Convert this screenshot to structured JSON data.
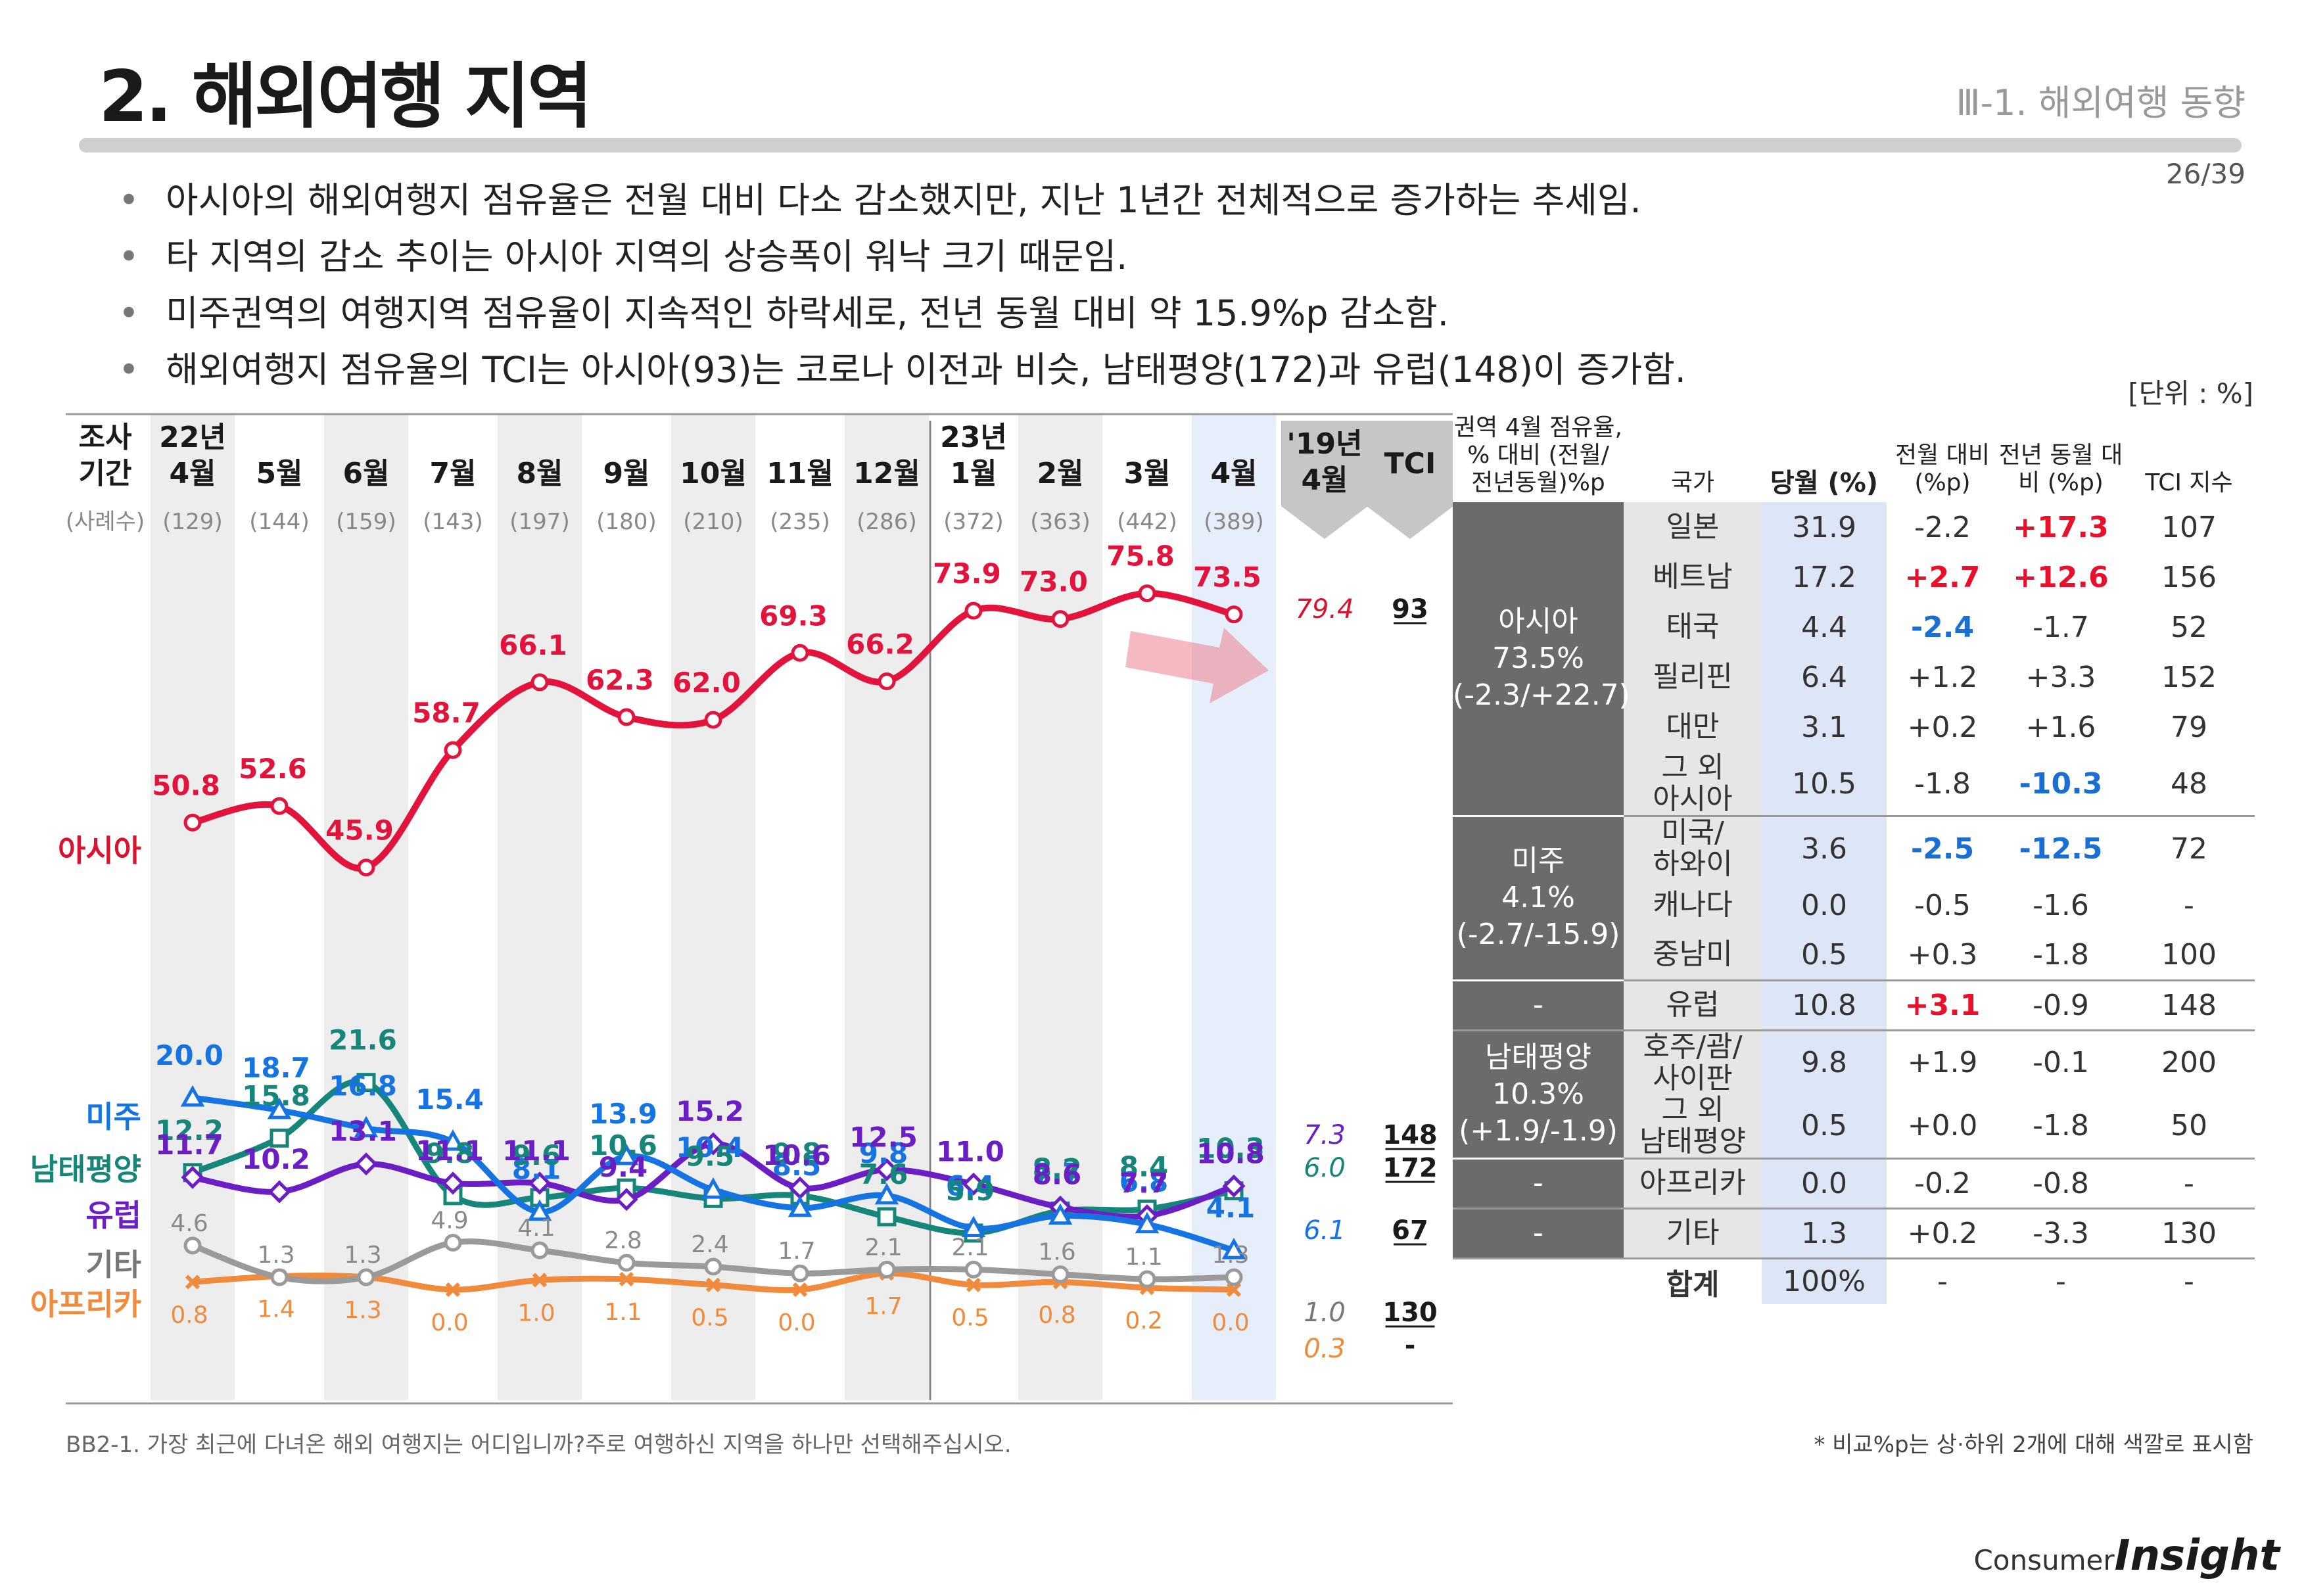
{
  "header": {
    "title": "2. 해외여행 지역",
    "section": "Ⅲ-1. 해외여행 동향",
    "page": "26/39"
  },
  "bullets": [
    "아시아의 해외여행지 점유율은 전월 대비 다소 감소했지만, 지난 1년간 전체적으로 증가하는 추세임.",
    "타 지역의 감소 추이는 아시아 지역의 상승폭이 워낙 크기 때문임.",
    "미주권역의 여행지역 점유율이 지속적인 하락세로, 전년 동월 대비 약 15.9%p 감소함.",
    "해외여행지 점유율의 TCI는 아시아(93)는 코로나 이전과 비슷, 남태평양(172)과 유럽(148)이 증가함."
  ],
  "unit_label": "[단위 : %]",
  "chart_data": {
    "type": "line",
    "period_label": [
      "조사",
      "기간"
    ],
    "sample_label": "(사례수)",
    "x": [
      {
        "year": "22년",
        "month": "4월",
        "n": "(129)"
      },
      {
        "year": "",
        "month": "5월",
        "n": "(144)"
      },
      {
        "year": "",
        "month": "6월",
        "n": "(159)"
      },
      {
        "year": "",
        "month": "7월",
        "n": "(143)"
      },
      {
        "year": "",
        "month": "8월",
        "n": "(197)"
      },
      {
        "year": "",
        "month": "9월",
        "n": "(180)"
      },
      {
        "year": "",
        "month": "10월",
        "n": "(210)"
      },
      {
        "year": "",
        "month": "11월",
        "n": "(235)"
      },
      {
        "year": "",
        "month": "12월",
        "n": "(286)"
      },
      {
        "year": "23년",
        "month": "1월",
        "n": "(372)"
      },
      {
        "year": "",
        "month": "2월",
        "n": "(363)"
      },
      {
        "year": "",
        "month": "3월",
        "n": "(442)"
      },
      {
        "year": "",
        "month": "4월",
        "n": "(389)"
      }
    ],
    "ref_header": [
      "'19년",
      "4월"
    ],
    "tci_header": "TCI",
    "series": [
      {
        "name": "아시아",
        "color": "#e3143c",
        "marker": "circle",
        "values": [
          50.8,
          52.6,
          45.9,
          58.7,
          66.1,
          62.3,
          62.0,
          69.3,
          66.2,
          73.9,
          73.0,
          75.8,
          73.5
        ],
        "ref_2019": "79.4",
        "tci": "93"
      },
      {
        "name": "미주",
        "color": "#1673e2",
        "marker": "triangle",
        "values": [
          20.0,
          18.7,
          16.8,
          15.4,
          8.1,
          13.9,
          10.4,
          8.5,
          9.8,
          6.4,
          7.7,
          6.8,
          4.1
        ],
        "ref_2019": "6.1",
        "tci": "67"
      },
      {
        "name": "남태평양",
        "color": "#16857a",
        "marker": "square",
        "values": [
          12.2,
          15.8,
          21.6,
          9.8,
          9.6,
          10.6,
          9.5,
          9.8,
          7.6,
          5.9,
          8.2,
          8.4,
          10.3
        ],
        "ref_2019": "6.0",
        "tci": "172"
      },
      {
        "name": "유럽",
        "color": "#6b1ec4",
        "marker": "diamond",
        "values": [
          11.7,
          10.2,
          13.1,
          11.1,
          11.1,
          9.4,
          15.2,
          10.6,
          12.5,
          11.0,
          8.6,
          7.7,
          10.8
        ],
        "ref_2019": "7.3",
        "tci": "148"
      },
      {
        "name": "기타",
        "color": "#9a9a9a",
        "marker": "circle",
        "values": [
          4.6,
          1.3,
          1.3,
          4.9,
          4.1,
          2.8,
          2.4,
          1.7,
          2.1,
          2.1,
          1.6,
          1.1,
          1.3
        ],
        "ref_2019": "1.0",
        "tci": "130"
      },
      {
        "name": "아프리카",
        "color": "#f08a3c",
        "marker": "x",
        "values": [
          0.8,
          1.4,
          1.3,
          0.0,
          1.0,
          1.1,
          0.5,
          0.0,
          1.7,
          0.5,
          0.8,
          0.2,
          0.0
        ],
        "ref_2019": "0.3",
        "tci": "-"
      }
    ]
  },
  "table": {
    "headers": {
      "region": "권역 4월 점유율, % 대비 (전월/ 전년동월)%p",
      "country": "국가",
      "current": "당월 (%)",
      "mom": "전월 대비 (%p)",
      "yoy": "전년 동월 대비 (%p)",
      "tci": "TCI 지수"
    },
    "groups": [
      {
        "region": [
          "아시아",
          "73.5%",
          "(-2.3/+22.7)"
        ],
        "rows": [
          {
            "country": "일본",
            "cur": "31.9",
            "mom": "-2.2",
            "yoy": "+17.3",
            "tci": "107",
            "mom_hl": "",
            "yoy_hl": "red"
          },
          {
            "country": "베트남",
            "cur": "17.2",
            "mom": "+2.7",
            "yoy": "+12.6",
            "tci": "156",
            "mom_hl": "red",
            "yoy_hl": "red"
          },
          {
            "country": "태국",
            "cur": "4.4",
            "mom": "-2.4",
            "yoy": "-1.7",
            "tci": "52",
            "mom_hl": "blue",
            "yoy_hl": ""
          },
          {
            "country": "필리핀",
            "cur": "6.4",
            "mom": "+1.2",
            "yoy": "+3.3",
            "tci": "152",
            "mom_hl": "",
            "yoy_hl": ""
          },
          {
            "country": "대만",
            "cur": "3.1",
            "mom": "+0.2",
            "yoy": "+1.6",
            "tci": "79",
            "mom_hl": "",
            "yoy_hl": ""
          },
          {
            "country": "그 외\n아시아",
            "cur": "10.5",
            "mom": "-1.8",
            "yoy": "-10.3",
            "tci": "48",
            "mom_hl": "",
            "yoy_hl": "blue"
          }
        ]
      },
      {
        "region": [
          "미주",
          "4.1%",
          "(-2.7/-15.9)"
        ],
        "rows": [
          {
            "country": "미국/\n하와이",
            "cur": "3.6",
            "mom": "-2.5",
            "yoy": "-12.5",
            "tci": "72",
            "mom_hl": "blue",
            "yoy_hl": "blue"
          },
          {
            "country": "캐나다",
            "cur": "0.0",
            "mom": "-0.5",
            "yoy": "-1.6",
            "tci": "-",
            "mom_hl": "",
            "yoy_hl": ""
          },
          {
            "country": "중남미",
            "cur": "0.5",
            "mom": "+0.3",
            "yoy": "-1.8",
            "tci": "100",
            "mom_hl": "",
            "yoy_hl": ""
          }
        ]
      },
      {
        "region": [
          "-"
        ],
        "rows": [
          {
            "country": "유럽",
            "cur": "10.8",
            "mom": "+3.1",
            "yoy": "-0.9",
            "tci": "148",
            "mom_hl": "red",
            "yoy_hl": ""
          }
        ]
      },
      {
        "region": [
          "남태평양",
          "10.3%",
          "(+1.9/-1.9)"
        ],
        "rows": [
          {
            "country": "호주/괌/\n사이판",
            "cur": "9.8",
            "mom": "+1.9",
            "yoy": "-0.1",
            "tci": "200",
            "mom_hl": "",
            "yoy_hl": ""
          },
          {
            "country": "그 외\n남태평양",
            "cur": "0.5",
            "mom": "+0.0",
            "yoy": "-1.8",
            "tci": "50",
            "mom_hl": "",
            "yoy_hl": ""
          }
        ]
      },
      {
        "region": [
          "-"
        ],
        "rows": [
          {
            "country": "아프리카",
            "cur": "0.0",
            "mom": "-0.2",
            "yoy": "-0.8",
            "tci": "-",
            "mom_hl": "",
            "yoy_hl": ""
          }
        ]
      },
      {
        "region": [
          "-"
        ],
        "rows": [
          {
            "country": "기타",
            "cur": "1.3",
            "mom": "+0.2",
            "yoy": "-3.3",
            "tci": "130",
            "mom_hl": "",
            "yoy_hl": ""
          }
        ]
      }
    ],
    "total": {
      "label": "합계",
      "cur": "100%",
      "mom": "-",
      "yoy": "-",
      "tci": "-"
    }
  },
  "footnote": "BB2-1. 가장 최근에 다녀온 해외 여행지는 어디입니까?주로 여행하신 지역을 하나만 선택해주십시오.",
  "footnote_right": "* 비교%p는 상·하위 2개에 대해 색깔로 표시함",
  "logo": {
    "small": "Consumer",
    "big": "Insight"
  }
}
